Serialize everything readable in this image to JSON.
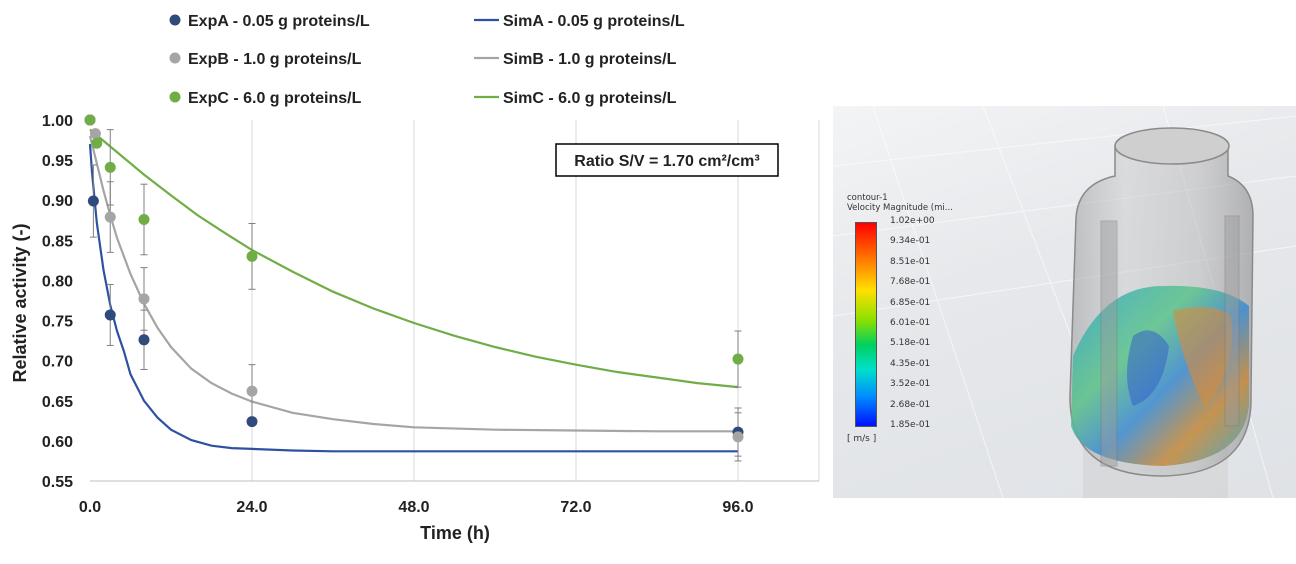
{
  "chart_data": {
    "type": "scatter",
    "xlabel": "Time (h)",
    "ylabel": "Relative activity (-)",
    "xlim": [
      0,
      108
    ],
    "ylim": [
      0.55,
      1.0
    ],
    "xticks": [
      0,
      24,
      48,
      72,
      96
    ],
    "xtick_labels": [
      "0.0",
      "24.0",
      "48.0",
      "72.0",
      "96.0"
    ],
    "yticks": [
      0.55,
      0.6,
      0.65,
      0.7,
      0.75,
      0.8,
      0.85,
      0.9,
      0.95,
      1.0
    ],
    "ytick_labels": [
      "0.55",
      "0.60",
      "0.65",
      "0.70",
      "0.75",
      "0.80",
      "0.85",
      "0.90",
      "0.95",
      "1.00"
    ],
    "grid": "vertical",
    "legend_position": "top",
    "annotation": "Ratio S/V = 1.70 cm²/cm³",
    "experimental": [
      {
        "name": "ExpA - 0.05 g proteins/L",
        "color": "#2f4b7c",
        "points": [
          {
            "x": 0,
            "y": 1.0
          },
          {
            "x": 0.5,
            "y": 0.899,
            "err": 0.045
          },
          {
            "x": 3,
            "y": 0.757,
            "err": 0.038
          },
          {
            "x": 8,
            "y": 0.726,
            "err": 0.037
          },
          {
            "x": 24,
            "y": 0.624
          },
          {
            "x": 96,
            "y": 0.611,
            "err": 0.03
          }
        ]
      },
      {
        "name": "ExpB - 1.0 g proteins/L",
        "color": "#a5a5a5",
        "points": [
          {
            "x": 0,
            "y": 1.0
          },
          {
            "x": 0.8,
            "y": 0.983
          },
          {
            "x": 3,
            "y": 0.879,
            "err": 0.044
          },
          {
            "x": 8,
            "y": 0.777,
            "err": 0.039
          },
          {
            "x": 24,
            "y": 0.662,
            "err": 0.033
          },
          {
            "x": 96,
            "y": 0.605,
            "err": 0.03
          }
        ]
      },
      {
        "name": "ExpC - 6.0 g proteins/L",
        "color": "#70ad47",
        "points": [
          {
            "x": 0,
            "y": 1.0
          },
          {
            "x": 1,
            "y": 0.971
          },
          {
            "x": 3,
            "y": 0.941,
            "err": 0.047
          },
          {
            "x": 8,
            "y": 0.876,
            "err": 0.044
          },
          {
            "x": 24,
            "y": 0.83,
            "err": 0.041
          },
          {
            "x": 96,
            "y": 0.702,
            "err": 0.035
          }
        ]
      }
    ],
    "simulated": [
      {
        "name": "SimA - 0.05 g proteins/L",
        "color": "#2f52a0",
        "x": [
          0,
          0.3,
          1,
          2,
          3,
          4,
          5,
          6,
          8,
          10,
          12,
          15,
          18,
          21,
          24,
          30,
          36,
          48,
          60,
          72,
          84,
          96
        ],
        "y": [
          0.97,
          0.935,
          0.872,
          0.813,
          0.769,
          0.737,
          0.712,
          0.683,
          0.65,
          0.629,
          0.614,
          0.601,
          0.594,
          0.591,
          0.59,
          0.588,
          0.587,
          0.587,
          0.587,
          0.587,
          0.587,
          0.587
        ]
      },
      {
        "name": "SimB - 1.0 g proteins/L",
        "color": "#a5a5a5",
        "x": [
          0,
          1,
          2,
          3,
          4,
          6,
          8,
          10,
          12,
          15,
          18,
          21,
          24,
          30,
          36,
          42,
          48,
          60,
          72,
          84,
          96
        ],
        "y": [
          0.98,
          0.946,
          0.912,
          0.881,
          0.853,
          0.808,
          0.771,
          0.741,
          0.717,
          0.69,
          0.672,
          0.659,
          0.649,
          0.635,
          0.627,
          0.621,
          0.617,
          0.614,
          0.613,
          0.612,
          0.612
        ]
      },
      {
        "name": "SimC - 6.0 g proteins/L",
        "color": "#70ad47",
        "x": [
          0,
          4,
          8,
          12,
          16,
          20,
          24,
          30,
          36,
          42,
          48,
          54,
          60,
          66,
          72,
          78,
          84,
          90,
          96
        ],
        "y": [
          0.988,
          0.96,
          0.932,
          0.906,
          0.881,
          0.859,
          0.838,
          0.811,
          0.786,
          0.765,
          0.747,
          0.731,
          0.717,
          0.705,
          0.695,
          0.686,
          0.679,
          0.672,
          0.667
        ]
      }
    ]
  },
  "cfd_panel": {
    "colorbar_title_1": "contour-1",
    "colorbar_title_2": "Velocity Magnitude (mi...",
    "colorbar_labels": [
      "1.02e+00",
      "9.34e-01",
      "8.51e-01",
      "7.68e-01",
      "6.85e-01",
      "6.01e-01",
      "5.18e-01",
      "4.35e-01",
      "3.52e-01",
      "2.68e-01",
      "1.85e-01"
    ],
    "colorbar_unit": "[ m/s ]"
  }
}
